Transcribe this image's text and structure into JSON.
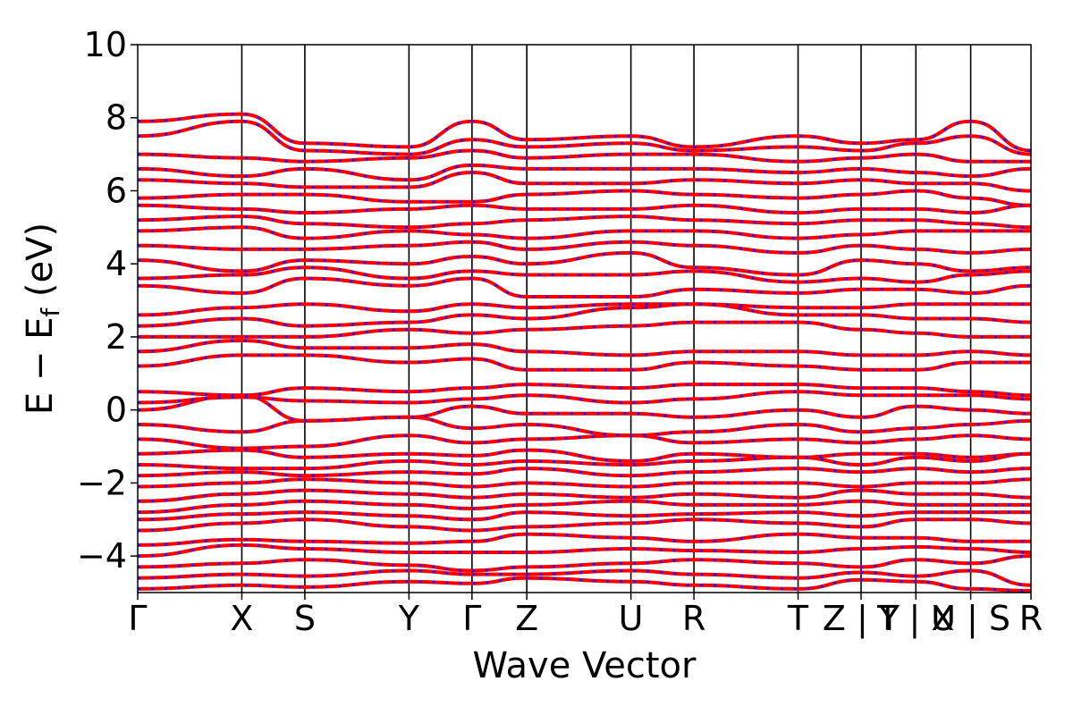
{
  "chart_data": {
    "type": "line",
    "xlabel": "Wave Vector",
    "ylabel": "E − E",
    "ylabel_subscript": "f",
    "ylabel_unit": " (eV)",
    "ylim": [
      -5,
      10
    ],
    "yticks": [
      -4,
      -2,
      0,
      2,
      4,
      6,
      8,
      10
    ],
    "ytick_labels": [
      "−4",
      "−2",
      "0",
      "2",
      "4",
      "6",
      "8",
      "10"
    ],
    "xlim": [
      0,
      16.3
    ],
    "kpoints": [
      {
        "label": "Γ",
        "x": 0
      },
      {
        "label": "X",
        "x": 1.9
      },
      {
        "label": "S",
        "x": 3.05
      },
      {
        "label": "Y",
        "x": 4.95
      },
      {
        "label": "Γ",
        "x": 6.1
      },
      {
        "label": "Z",
        "x": 7.1
      },
      {
        "label": "U",
        "x": 9.0
      },
      {
        "label": "R",
        "x": 10.15
      },
      {
        "label": "T",
        "x": 12.05
      },
      {
        "label": "Z | Y",
        "x": 13.2
      },
      {
        "label": "T | X",
        "x": 14.2
      },
      {
        "label": "U | S",
        "x": 15.2
      },
      {
        "label": "R",
        "x": 16.3
      }
    ],
    "grid": false,
    "series_colors": {
      "band_line": "#ff0000",
      "band_dash": "#1a1aff"
    },
    "band_energies": [
      [
        -4.9,
        -4.8,
        -4.85,
        -4.7,
        -4.75,
        -4.6,
        -4.7,
        -4.8,
        -4.9,
        -4.65,
        -4.7,
        -4.9,
        -4.95
      ],
      [
        -4.6,
        -4.5,
        -4.55,
        -4.4,
        -4.5,
        -4.5,
        -4.4,
        -4.5,
        -4.6,
        -4.45,
        -4.55,
        -4.4,
        -4.8
      ],
      [
        -4.3,
        -4.2,
        -4.1,
        -4.25,
        -4.4,
        -4.3,
        -4.2,
        -4.1,
        -4.2,
        -4.3,
        -4.1,
        -4.2,
        -4.0
      ],
      [
        -4.0,
        -3.7,
        -3.8,
        -3.9,
        -3.9,
        -3.9,
        -3.8,
        -3.85,
        -3.9,
        -3.8,
        -3.75,
        -3.8,
        -3.9
      ],
      [
        -3.7,
        -3.55,
        -3.6,
        -3.65,
        -3.6,
        -3.4,
        -3.5,
        -3.6,
        -3.4,
        -3.5,
        -3.5,
        -3.6,
        -3.6
      ],
      [
        -3.3,
        -3.1,
        -3.0,
        -3.2,
        -3.3,
        -3.2,
        -3.1,
        -3.0,
        -3.1,
        -3.2,
        -3.0,
        -3.0,
        -3.1
      ],
      [
        -3.0,
        -2.85,
        -2.8,
        -2.9,
        -3.0,
        -2.8,
        -2.9,
        -2.85,
        -2.8,
        -2.9,
        -2.8,
        -2.8,
        -2.8
      ],
      [
        -2.8,
        -2.6,
        -2.5,
        -2.6,
        -2.7,
        -2.6,
        -2.5,
        -2.6,
        -2.6,
        -2.5,
        -2.6,
        -2.6,
        -2.6
      ],
      [
        -2.5,
        -2.3,
        -2.2,
        -2.3,
        -2.4,
        -2.3,
        -2.4,
        -2.3,
        -2.4,
        -2.2,
        -2.3,
        -2.3,
        -2.4
      ],
      [
        -2.1,
        -2.0,
        -1.9,
        -2.0,
        -2.1,
        -2.0,
        -2.1,
        -2.0,
        -2.0,
        -2.1,
        -2.0,
        -2.0,
        -1.9
      ],
      [
        -1.8,
        -1.7,
        -1.8,
        -1.7,
        -1.75,
        -1.6,
        -1.8,
        -1.7,
        -1.6,
        -1.7,
        -1.6,
        -1.7,
        -1.6
      ],
      [
        -1.5,
        -1.6,
        -1.6,
        -1.4,
        -1.5,
        -1.4,
        -1.5,
        -1.4,
        -1.3,
        -1.5,
        -1.3,
        -1.4,
        -1.2
      ],
      [
        -1.2,
        -1.1,
        -1.3,
        -1.2,
        -1.25,
        -1.1,
        -1.4,
        -1.2,
        -1.3,
        -1.2,
        -1.2,
        -1.3,
        -1.2
      ],
      [
        -0.8,
        -1.05,
        -1.0,
        -0.7,
        -0.9,
        -0.8,
        -0.7,
        -0.9,
        -0.8,
        -0.9,
        -0.8,
        -0.7,
        -0.8
      ],
      [
        -0.4,
        -0.6,
        -0.3,
        -0.2,
        -0.5,
        -0.4,
        -0.7,
        -0.6,
        -0.4,
        -0.6,
        -0.5,
        -0.4,
        -0.3
      ],
      [
        0.0,
        0.4,
        -0.3,
        -0.2,
        0.1,
        -0.1,
        -0.1,
        -0.2,
        0.0,
        -0.2,
        0.1,
        0.0,
        -0.1
      ],
      [
        0.2,
        0.35,
        0.25,
        0.2,
        0.3,
        0.4,
        0.2,
        0.3,
        0.5,
        0.4,
        0.4,
        0.4,
        0.3
      ],
      [
        0.5,
        0.4,
        0.6,
        0.5,
        0.6,
        0.7,
        0.6,
        0.7,
        0.7,
        0.6,
        0.6,
        0.5,
        0.4
      ],
      [
        1.2,
        1.5,
        1.5,
        1.3,
        1.4,
        1.1,
        1.1,
        1.3,
        1.2,
        1.1,
        1.1,
        1.3,
        1.3
      ],
      [
        1.6,
        1.9,
        1.7,
        1.7,
        1.8,
        1.6,
        1.5,
        1.6,
        1.6,
        1.5,
        1.5,
        1.6,
        1.5
      ],
      [
        2.0,
        2.0,
        2.0,
        2.2,
        2.1,
        2.2,
        2.3,
        2.4,
        2.4,
        2.2,
        2.1,
        2.0,
        2.0
      ],
      [
        2.3,
        2.5,
        2.3,
        2.4,
        2.6,
        2.5,
        2.8,
        2.9,
        2.6,
        2.6,
        2.5,
        2.5,
        2.4
      ],
      [
        2.6,
        2.8,
        2.9,
        2.7,
        2.9,
        2.8,
        2.9,
        2.9,
        2.8,
        2.8,
        2.9,
        2.9,
        2.9
      ],
      [
        3.4,
        3.2,
        3.6,
        3.4,
        3.6,
        3.1,
        3.1,
        3.3,
        3.2,
        3.3,
        3.3,
        3.2,
        3.4
      ],
      [
        3.6,
        3.7,
        3.9,
        3.6,
        3.8,
        3.7,
        3.7,
        3.8,
        3.5,
        3.6,
        3.5,
        3.7,
        3.8
      ],
      [
        4.1,
        3.8,
        4.1,
        4.0,
        4.2,
        4.0,
        4.3,
        3.9,
        3.7,
        4.1,
        4.0,
        3.8,
        3.9
      ],
      [
        4.5,
        4.4,
        4.4,
        4.5,
        4.6,
        4.4,
        4.6,
        4.5,
        4.3,
        4.5,
        4.4,
        4.3,
        4.4
      ],
      [
        4.9,
        5.0,
        4.7,
        4.9,
        4.8,
        4.7,
        4.9,
        4.9,
        4.7,
        4.8,
        4.9,
        4.9,
        4.9
      ],
      [
        5.2,
        5.3,
        5.1,
        5.0,
        5.1,
        5.2,
        5.3,
        5.2,
        5.1,
        5.2,
        5.2,
        5.1,
        5.0
      ],
      [
        5.6,
        5.5,
        5.4,
        5.5,
        5.6,
        5.5,
        5.5,
        5.6,
        5.4,
        5.5,
        5.5,
        5.4,
        5.6
      ],
      [
        5.8,
        5.9,
        5.9,
        5.7,
        5.7,
        5.9,
        6.0,
        5.9,
        5.8,
        5.9,
        6.0,
        5.8,
        5.6
      ],
      [
        6.3,
        6.2,
        6.1,
        6.1,
        6.5,
        6.2,
        6.2,
        6.3,
        6.2,
        6.3,
        6.2,
        6.2,
        6.0
      ],
      [
        6.6,
        6.4,
        6.6,
        6.3,
        6.7,
        6.6,
        6.6,
        6.6,
        6.5,
        6.6,
        6.5,
        6.4,
        6.6
      ],
      [
        7.0,
        6.9,
        6.8,
        6.9,
        7.1,
        6.9,
        7.0,
        7.0,
        6.8,
        6.9,
        7.0,
        6.8,
        6.8
      ],
      [
        7.5,
        7.9,
        7.1,
        7.0,
        7.4,
        7.2,
        7.3,
        7.1,
        7.2,
        7.1,
        7.3,
        7.5,
        7.0
      ],
      [
        7.9,
        8.1,
        7.3,
        7.2,
        7.9,
        7.4,
        7.5,
        7.2,
        7.5,
        7.3,
        7.4,
        7.9,
        7.1
      ]
    ]
  }
}
